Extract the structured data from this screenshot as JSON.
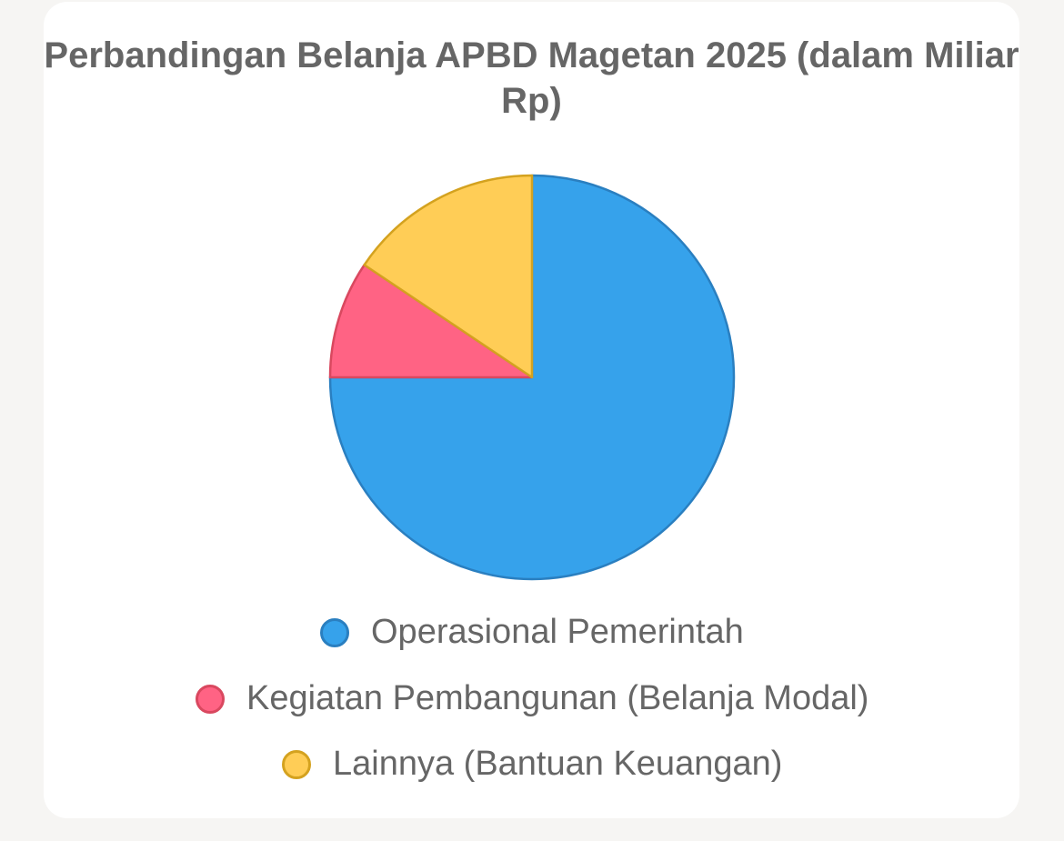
{
  "chart_data": {
    "type": "pie",
    "title": "Perbandingan Belanja APBD Magetan 2025 (dalam Miliar Rp)",
    "slices": [
      {
        "label": "Operasional Pemerintah",
        "value": 75,
        "color": "#36a2eb",
        "border": "#2a7fc0"
      },
      {
        "label": "Kegiatan Pembangunan (Belanja Modal)",
        "value": 9.4,
        "color": "#ff6384",
        "border": "#d9485f"
      },
      {
        "label": "Lainnya (Bantuan Keuangan)",
        "value": 15.6,
        "color": "#ffcd56",
        "border": "#d4a21f"
      }
    ],
    "legend_position": "bottom"
  }
}
